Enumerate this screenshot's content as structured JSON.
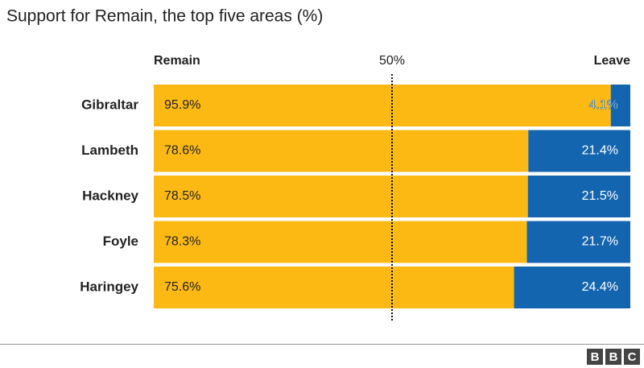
{
  "chart_data": {
    "type": "stacked_barh",
    "title": "Support for Remain, the top five areas (%)",
    "categories": [
      "Gibraltar",
      "Lambeth",
      "Hackney",
      "Foyle",
      "Haringey"
    ],
    "series": [
      {
        "name": "Remain",
        "color": "#fdb913",
        "values": [
          95.9,
          78.6,
          78.5,
          78.3,
          75.6
        ],
        "value_labels": [
          "95.9%",
          "78.6%",
          "78.5%",
          "78.3%",
          "75.6%"
        ]
      },
      {
        "name": "Leave",
        "color": "#1465b0",
        "values": [
          4.1,
          21.4,
          21.5,
          21.7,
          24.4
        ],
        "value_labels": [
          "4.1%",
          "21.4%",
          "21.5%",
          "21.7%",
          "24.4%"
        ]
      }
    ],
    "xlim": [
      0,
      100
    ],
    "reference_line": {
      "value": 50,
      "label": "50%"
    },
    "logo": [
      "B",
      "B",
      "C"
    ]
  }
}
